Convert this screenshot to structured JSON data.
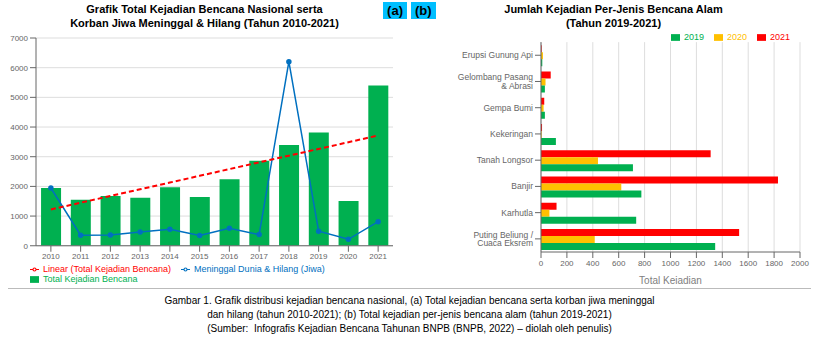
{
  "chart_data": [
    {
      "type": "bar",
      "title": "Grafik Total Kejadian Bencana Nasional serta\nKorban Jiwa Meninggal & Hilang (Tahun 2010-2021)",
      "categories": [
        "2010",
        "2011",
        "2012",
        "2013",
        "2014",
        "2015",
        "2016",
        "2017",
        "2018",
        "2019",
        "2020",
        "2021"
      ],
      "series": [
        {
          "name": "Total Kejadian Bencana",
          "type": "bar",
          "color": "#00b050",
          "values": [
            1942,
            1550,
            1680,
            1620,
            1967,
            1646,
            2243,
            2862,
            3397,
            3814,
            1508,
            5402
          ]
        },
        {
          "name": "Meninggal Dunia & Hilang (Jiwa)",
          "type": "line",
          "color": "#0070c0",
          "marker": "circle",
          "values": [
            1945,
            358,
            362,
            460,
            554,
            349,
            587,
            377,
            6200,
            490,
            218,
            810
          ]
        },
        {
          "name": "Linear (Total Kejadian Bencana)",
          "type": "line",
          "color": "#ff0000",
          "line_style": "dashed",
          "values": [
            1223.35,
            1449.87,
            1676.4,
            1902.93,
            2129.46,
            2355.99,
            2582.51,
            2809.04,
            3035.57,
            3262.1,
            3488.63,
            3715.15
          ]
        }
      ],
      "ylim": [
        0,
        7000
      ],
      "yticks": [
        0,
        1000,
        2000,
        3000,
        4000,
        5000,
        6000,
        7000
      ],
      "grid": true,
      "legend": "lower left",
      "annotations": [
        {
          "text": "(a)",
          "color": "#00bfff"
        }
      ]
    },
    {
      "type": "bar",
      "orientation": "horizontal",
      "title": "Jumlah Kejadian Per-Jenis Bencana Alam\n(Tahun 2019-2021)",
      "categories": [
        "Puting Beliung / Cuaca Eksrem",
        "Karhutla",
        "Banjir",
        "Tanah Longsor",
        "Kekeringan",
        "Gempa Bumi",
        "Gelombang Pasang & Abrasi",
        "Erupsi Gunung Api"
      ],
      "series": [
        {
          "name": "2021",
          "color": "#ff0000",
          "values": [
            1530,
            120,
            1830,
            1310,
            8,
            25,
            75,
            5
          ]
        },
        {
          "name": "2020",
          "color": "#ffc000",
          "values": [
            415,
            65,
            620,
            440,
            5,
            20,
            35,
            15
          ]
        },
        {
          "name": "2019",
          "color": "#00b050",
          "values": [
            1345,
            735,
            775,
            710,
            115,
            30,
            30,
            10
          ]
        }
      ],
      "xlabel": "Total Kejadian",
      "xlim": [
        0,
        2000
      ],
      "xticks": [
        0,
        200,
        400,
        600,
        800,
        1000,
        1200,
        1400,
        1600,
        1800,
        2000
      ],
      "grid": true,
      "legend": "upper right",
      "annotations": [
        {
          "text": "(b)",
          "color": "#00bfff"
        }
      ]
    }
  ],
  "caption": [
    "Gambar 1. Grafik distribusi kejadian bencana nasional, (a) Total kejadian bencana serta korban jiwa meninggal",
    "dan hilang (tahun 2010-2021); (b) Total kejadian per-jenis bencana alam (tahun 2019-2021)",
    "(Sumber:  Infografis Kejadian Bencana Tahunan BNPB (BNPB, 2022) – diolah oleh penulis)"
  ]
}
